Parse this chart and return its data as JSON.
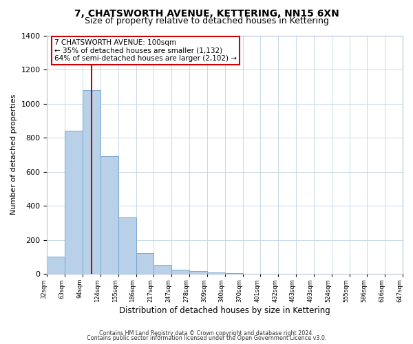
{
  "title": "7, CHATSWORTH AVENUE, KETTERING, NN15 6XN",
  "subtitle": "Size of property relative to detached houses in Kettering",
  "xlabel": "Distribution of detached houses by size in Kettering",
  "ylabel": "Number of detached properties",
  "bar_values": [
    100,
    840,
    1080,
    690,
    330,
    120,
    55,
    25,
    15,
    8,
    3,
    0,
    0,
    0,
    0,
    0,
    0,
    0,
    0,
    0
  ],
  "bar_labels": [
    "32sqm",
    "63sqm",
    "94sqm",
    "124sqm",
    "155sqm",
    "186sqm",
    "217sqm",
    "247sqm",
    "278sqm",
    "309sqm",
    "340sqm",
    "370sqm",
    "401sqm",
    "432sqm",
    "463sqm",
    "493sqm",
    "524sqm",
    "555sqm",
    "586sqm",
    "616sqm",
    "647sqm"
  ],
  "bar_color": "#b8d0e8",
  "bar_edge_color": "#7aaad0",
  "vline_color": "#cc0000",
  "vline_position": 2.5,
  "ylim": [
    0,
    1400
  ],
  "yticks": [
    0,
    200,
    400,
    600,
    800,
    1000,
    1200,
    1400
  ],
  "annotation_title": "7 CHATSWORTH AVENUE: 100sqm",
  "annotation_line1": "← 35% of detached houses are smaller (1,132)",
  "annotation_line2": "64% of semi-detached houses are larger (2,102) →",
  "annotation_box_color": "#ffffff",
  "annotation_edge_color": "#cc0000",
  "footer1": "Contains HM Land Registry data © Crown copyright and database right 2024.",
  "footer2": "Contains public sector information licensed under the Open Government Licence v3.0.",
  "background_color": "#ffffff",
  "grid_color": "#c8d8e8",
  "title_fontsize": 10,
  "subtitle_fontsize": 9
}
